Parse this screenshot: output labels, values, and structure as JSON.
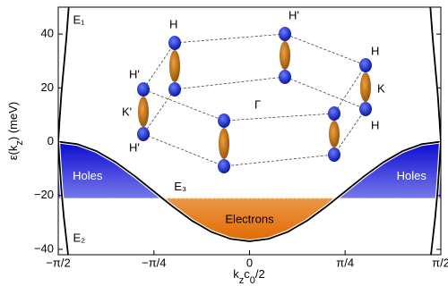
{
  "chart_data": {
    "type": "line",
    "ylabel": [
      "ε(k",
      "z",
      ") (meV)"
    ],
    "xlabel": [
      "k",
      "z",
      "c",
      "0",
      "/2"
    ],
    "xlim": [
      -1.571,
      1.571
    ],
    "ylim": [
      -42,
      50
    ],
    "xticks": [
      {
        "value": -1.571,
        "label": "−π/2"
      },
      {
        "value": -0.785,
        "label": "−π/4"
      },
      0,
      {
        "value": 0.785,
        "label": "π/4"
      },
      {
        "value": 1.571,
        "label": "π/2"
      }
    ],
    "yticks": [
      {
        "value": -40,
        "label": "−40"
      },
      {
        "value": -20,
        "label": "−20"
      },
      0,
      20,
      40
    ],
    "fermi_level": -21,
    "series": [
      {
        "name": "E₃",
        "color": "#000000",
        "x": [
          -1.571,
          -1.414,
          -1.257,
          -1.1,
          -0.942,
          -0.785,
          -0.628,
          -0.471,
          -0.314,
          -0.157,
          0,
          0.157,
          0.314,
          0.471,
          0.628,
          0.785,
          0.942,
          1.1,
          1.257,
          1.414,
          1.571
        ],
        "values": [
          0,
          -0.9,
          -3.5,
          -7.6,
          -12.8,
          -18.5,
          -24.2,
          -29.4,
          -33.5,
          -36.1,
          -37,
          -36.1,
          -33.5,
          -29.4,
          -24.2,
          -18.5,
          -12.8,
          -7.6,
          -3.5,
          -0.9,
          0
        ]
      },
      {
        "name": "E₁",
        "color": "#000000",
        "x": [
          -1.571,
          -1.56,
          -1.545,
          -1.525,
          -1.505,
          -1.485,
          null,
          1.485,
          1.505,
          1.525,
          1.545,
          1.56,
          1.571
        ],
        "values": [
          0,
          8,
          18,
          28,
          38,
          50,
          null,
          50,
          38,
          28,
          18,
          8,
          0
        ]
      },
      {
        "name": "E₂",
        "color": "#000000",
        "x": [
          -1.571,
          -1.56,
          -1.545,
          -1.525,
          -1.505,
          -1.49,
          null,
          1.49,
          1.505,
          1.525,
          1.545,
          1.56,
          1.571
        ],
        "values": [
          0,
          -8,
          -18,
          -28,
          -36,
          -42,
          null,
          -42,
          -36,
          -28,
          -18,
          -8,
          0
        ]
      }
    ],
    "annotations": [
      "Holes",
      "Holes",
      "Electrons"
    ]
  },
  "inset": {
    "labels": [
      "H",
      "H'",
      "H",
      "K",
      "H",
      "Γ",
      "H'",
      "K'",
      "H'"
    ]
  }
}
